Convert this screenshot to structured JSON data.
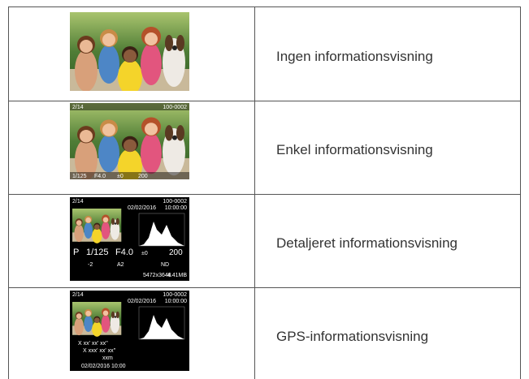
{
  "table": {
    "rows": [
      {
        "label": "Ingen informationsvisning"
      },
      {
        "label": "Enkel informationsvisning",
        "screen": {
          "top": [
            "2/14",
            "100-0002"
          ],
          "bottom": [
            "1/125",
            "F4.0",
            "±0",
            "200"
          ]
        }
      },
      {
        "label": "Detaljeret informationsvisning",
        "screen": {
          "top": [
            "2/14",
            "100-0002"
          ],
          "date": "02/02/2016",
          "time": "10:00:00",
          "mode": "P",
          "shutter": "1/125",
          "aperture": "F4.0",
          "exposure": "±0",
          "iso": "200",
          "details": [
            "-2",
            "A2",
            "ND"
          ],
          "size": "5472x3648",
          "filesize": "4.41MB"
        }
      },
      {
        "label": "GPS-informationsvisning",
        "screen": {
          "top": [
            "2/14",
            "100-0002"
          ],
          "date": "02/02/2016",
          "time": "10:00:00",
          "gps": [
            "X  xx' xx' xx''",
            "X  xxx' xx' xx''",
            "xxm"
          ],
          "stamp": "02/02/2016  10:00"
        }
      }
    ]
  }
}
